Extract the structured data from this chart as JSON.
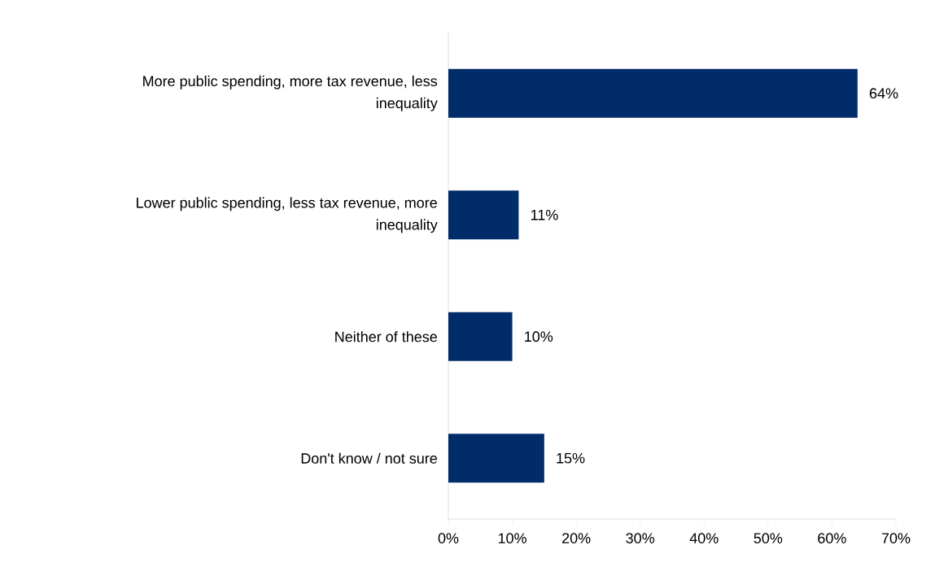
{
  "chart_data": {
    "type": "bar",
    "orientation": "horizontal",
    "categories": [
      "More public spending, more tax revenue, less inequality",
      "Lower public spending, less tax revenue, more inequality",
      "Neither of these",
      "Don't know / not sure"
    ],
    "values": [
      64,
      11,
      10,
      15
    ],
    "value_labels": [
      "64%",
      "11%",
      "10%",
      "15%"
    ],
    "color": "#002d6a",
    "xlim": [
      0,
      70
    ],
    "xticks": [
      {
        "value": 0,
        "label": "0%"
      },
      {
        "value": 10,
        "label": "10%"
      },
      {
        "value": 20,
        "label": "20%"
      },
      {
        "value": 30,
        "label": "30%"
      },
      {
        "value": 40,
        "label": "40%"
      },
      {
        "value": 50,
        "label": "50%"
      },
      {
        "value": 60,
        "label": "60%"
      },
      {
        "value": 70,
        "label": "70%"
      }
    ],
    "grid": false
  }
}
